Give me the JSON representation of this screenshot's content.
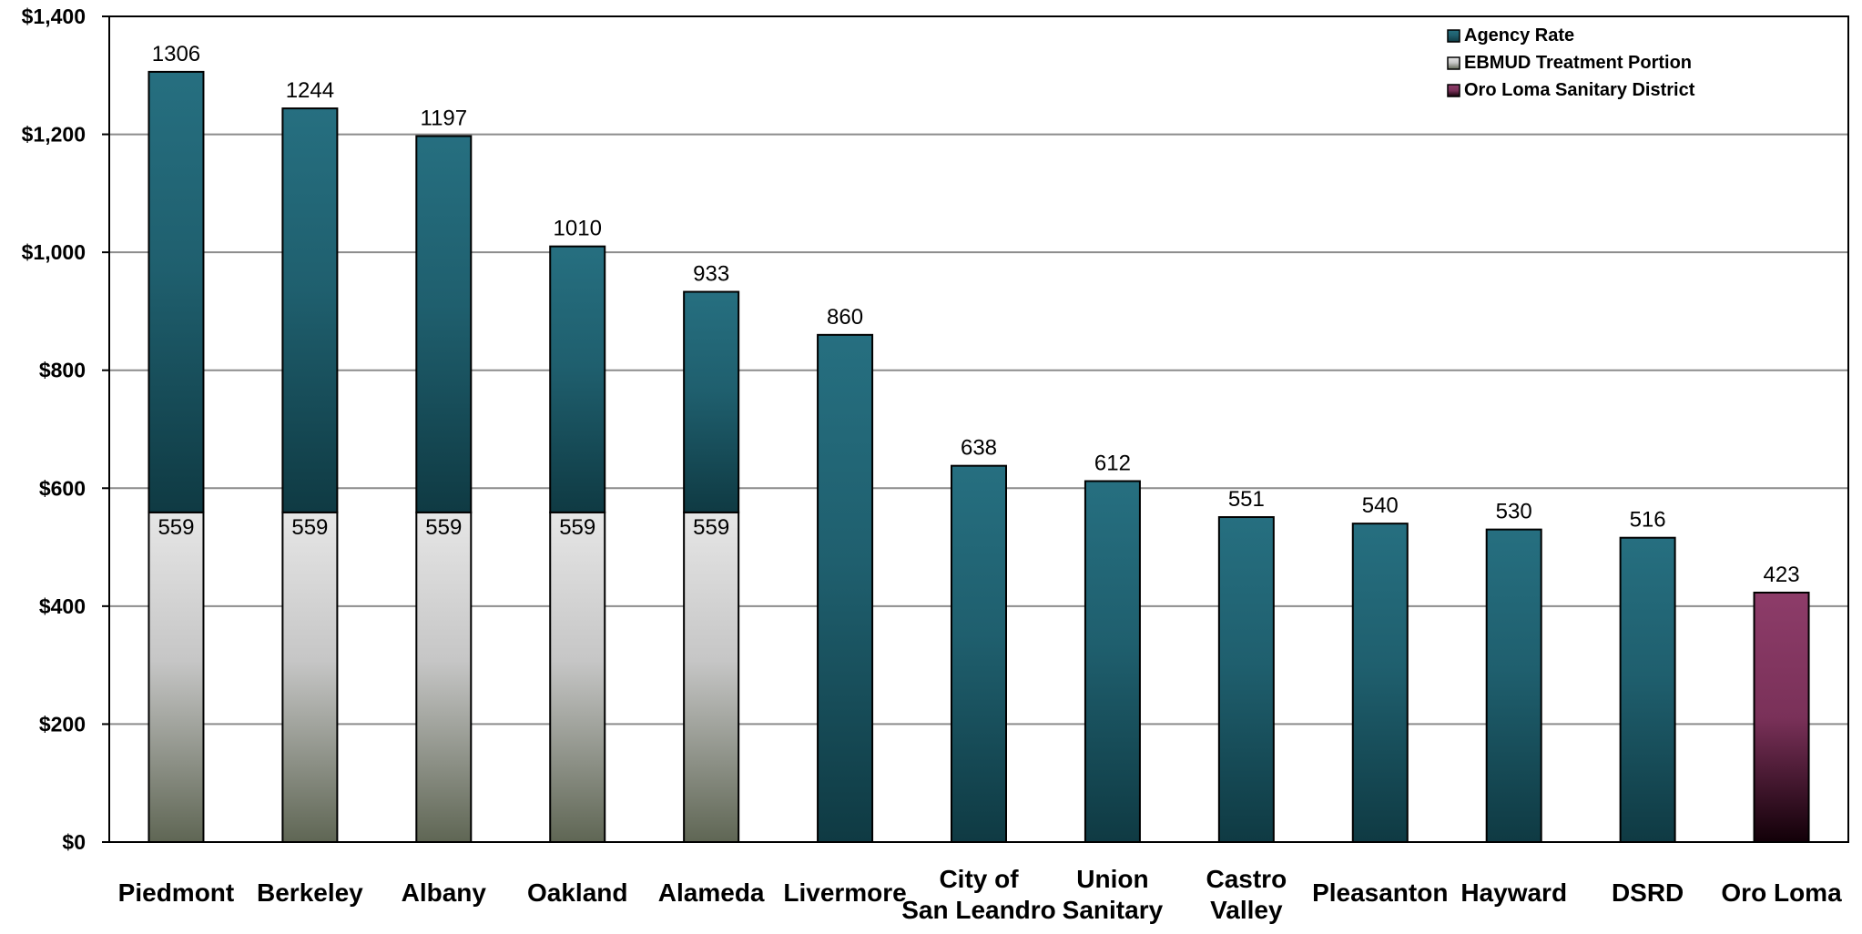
{
  "chart_data": {
    "type": "bar",
    "stacked": true,
    "title": "",
    "xlabel": "",
    "ylabel": "",
    "ylim": [
      0,
      1400
    ],
    "y_ticks": [
      "$0",
      "$200",
      "$400",
      "$600",
      "$800",
      "$1,000",
      "$1,200",
      "$1,400"
    ],
    "grid": true,
    "legend_position": "top-right",
    "categories": [
      [
        "Piedmont"
      ],
      [
        "Berkeley"
      ],
      [
        "Albany"
      ],
      [
        "Oakland"
      ],
      [
        "Alameda"
      ],
      [
        "Livermore"
      ],
      [
        "City of",
        "San Leandro"
      ],
      [
        "Union",
        "Sanitary"
      ],
      [
        "Castro",
        "Valley"
      ],
      [
        "Pleasanton"
      ],
      [
        "Hayward"
      ],
      [
        "DSRD"
      ],
      [
        "Oro Loma"
      ]
    ],
    "totals": [
      1306,
      1244,
      1197,
      1010,
      933,
      860,
      638,
      612,
      551,
      540,
      530,
      516,
      423
    ],
    "total_labels": [
      "1306",
      "1244",
      "1197",
      "1010",
      "933",
      "860",
      "638",
      "612",
      "551",
      "540",
      "530",
      "516",
      "423"
    ],
    "series": [
      {
        "name": "Agency Rate",
        "color": "#236878",
        "values": [
          747,
          685,
          638,
          451,
          374,
          860,
          638,
          612,
          551,
          540,
          530,
          516,
          null
        ]
      },
      {
        "name": "EBMUD Treatment Portion",
        "color": "#d8d8d8",
        "values": [
          559,
          559,
          559,
          559,
          559,
          null,
          null,
          null,
          null,
          null,
          null,
          null,
          null
        ]
      },
      {
        "name": "Oro Loma Sanitary District",
        "color": "#8a3a66",
        "values": [
          null,
          null,
          null,
          null,
          null,
          null,
          null,
          null,
          null,
          null,
          null,
          null,
          423
        ]
      }
    ],
    "ebmud_labels": [
      "559",
      "559",
      "559",
      "559",
      "559"
    ]
  }
}
